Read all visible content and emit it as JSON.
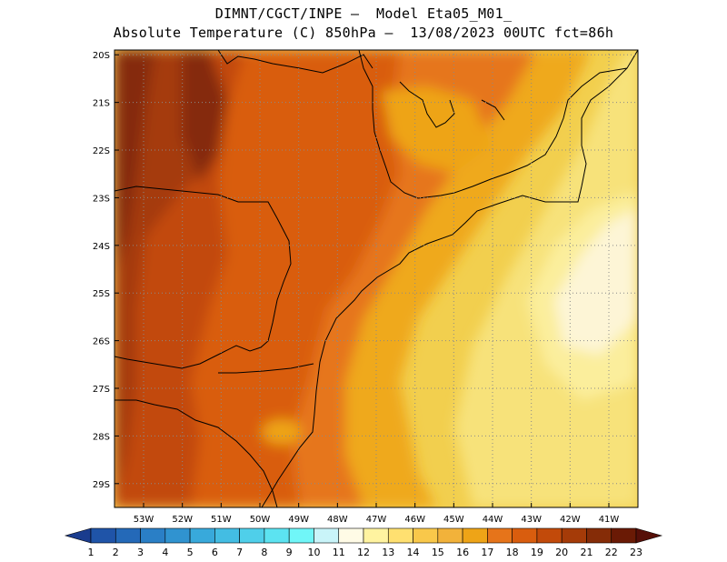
{
  "title": {
    "line1": "DIMNT/CGCT/INPE –  Model Eta05_M01_",
    "line2": "Absolute Temperature (C) 850hPa –  13/08/2023 00UTC fct=86h"
  },
  "map": {
    "lon_range": [
      -53.75,
      -40.25
    ],
    "lat_range": [
      -29.5,
      -19.9
    ],
    "lon_ticks": [
      {
        "value": -53,
        "label": "53W"
      },
      {
        "value": -52,
        "label": "52W"
      },
      {
        "value": -51,
        "label": "51W"
      },
      {
        "value": -50,
        "label": "50W"
      },
      {
        "value": -49,
        "label": "49W"
      },
      {
        "value": -48,
        "label": "48W"
      },
      {
        "value": -47,
        "label": "47W"
      },
      {
        "value": -46,
        "label": "46W"
      },
      {
        "value": -45,
        "label": "45W"
      },
      {
        "value": -44,
        "label": "44W"
      },
      {
        "value": -43,
        "label": "43W"
      },
      {
        "value": -42,
        "label": "42W"
      },
      {
        "value": -41,
        "label": "41W"
      }
    ],
    "lat_ticks": [
      {
        "value": -20,
        "label": "20S"
      },
      {
        "value": -21,
        "label": "21S"
      },
      {
        "value": -22,
        "label": "22S"
      },
      {
        "value": -23,
        "label": "23S"
      },
      {
        "value": -24,
        "label": "24S"
      },
      {
        "value": -25,
        "label": "25S"
      },
      {
        "value": -26,
        "label": "26S"
      },
      {
        "value": -27,
        "label": "27S"
      },
      {
        "value": -28,
        "label": "28S"
      },
      {
        "value": -29,
        "label": "29S"
      }
    ],
    "grid": "dotted"
  },
  "colorbar": {
    "labels": [
      "1",
      "2",
      "3",
      "4",
      "5",
      "6",
      "7",
      "8",
      "9",
      "10",
      "11",
      "12",
      "13",
      "14",
      "15",
      "16",
      "17",
      "18",
      "19",
      "20",
      "21",
      "22",
      "23"
    ],
    "colors": [
      "#1a3c8e",
      "#1f54a8",
      "#2469b8",
      "#2a7fc6",
      "#3093d0",
      "#38a9db",
      "#43bde3",
      "#4fcfea",
      "#5ce3f1",
      "#70f6f8",
      "#c9f4f9",
      "#fffbe6",
      "#fff3a0",
      "#ffe070",
      "#f9c84a",
      "#f2b23a",
      "#eea417",
      "#e6741a",
      "#d95d0e",
      "#c24a0a",
      "#a53b08",
      "#852c07",
      "#6a1a05",
      "#560f08"
    ]
  }
}
